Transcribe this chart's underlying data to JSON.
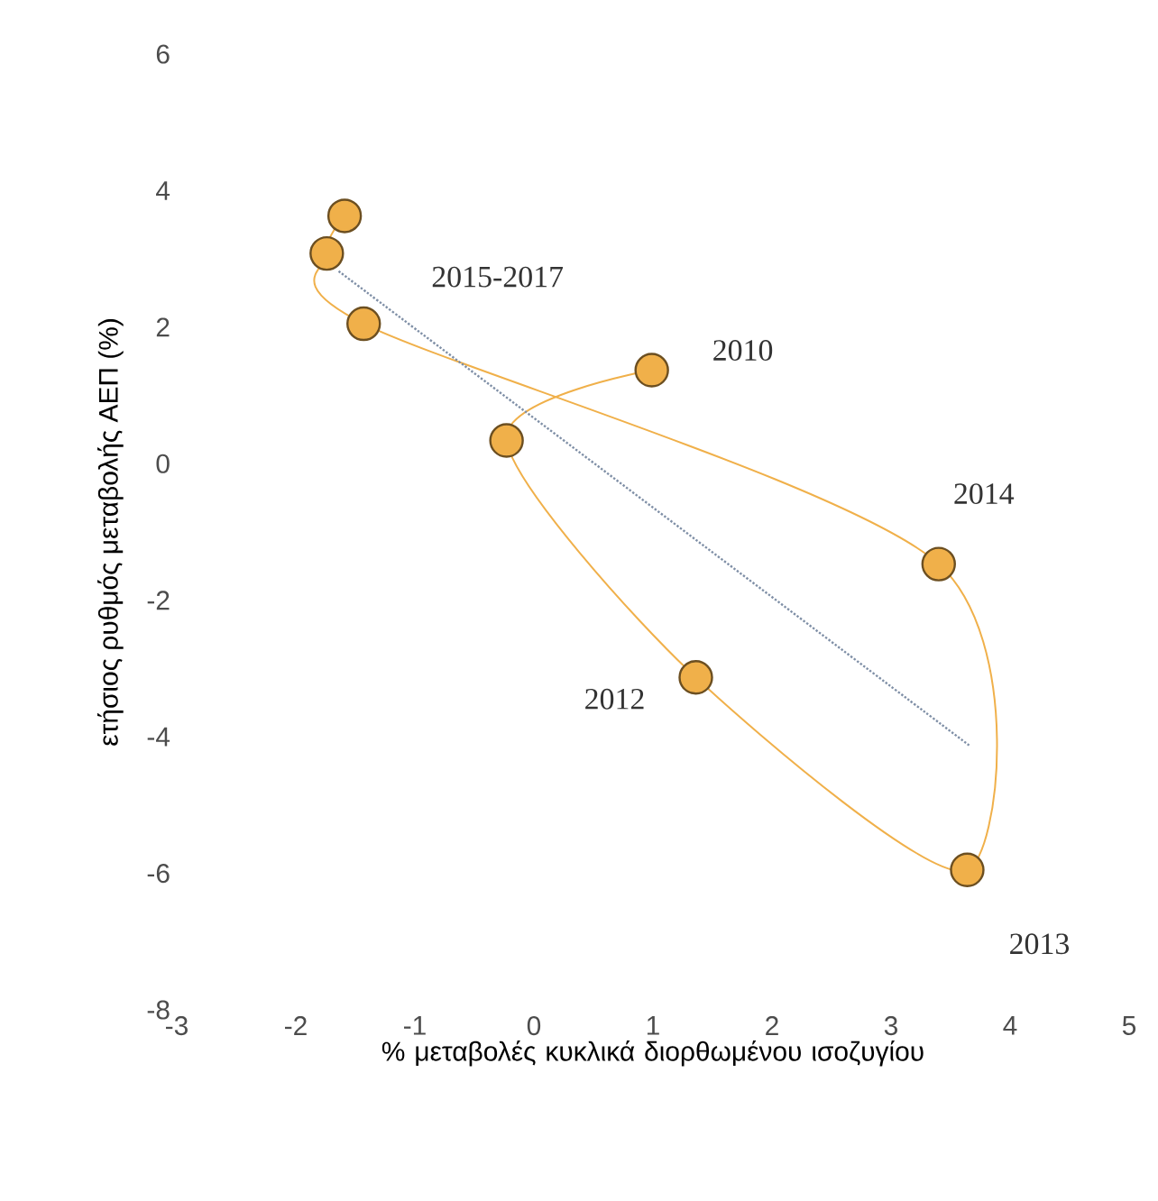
{
  "chart_data": {
    "type": "line",
    "xlabel": "% μεταβολές κυκλικά διορθωμένου ισοζυγίου",
    "ylabel": "ετήσιος ρυθμός μεταβολής ΑΕΠ (%)",
    "xlim": [
      -3,
      5
    ],
    "ylim": [
      -8,
      6
    ],
    "xticks": [
      -3,
      -2,
      -1,
      0,
      1,
      2,
      3,
      4,
      5
    ],
    "yticks": [
      -8,
      -6,
      -4,
      -2,
      0,
      2,
      4,
      6
    ],
    "series": [
      {
        "color": "#f0b04a",
        "marker": "circle",
        "line_style": "solid",
        "x": [
          0.99,
          -0.23,
          1.36,
          3.64,
          3.4,
          -1.43,
          -1.74,
          -1.59
        ],
        "values": [
          1.37,
          0.34,
          -3.13,
          -5.95,
          -1.47,
          2.05,
          3.08,
          3.63
        ]
      },
      {
        "color": "#7f8fa6",
        "marker": "none",
        "line_style": "dotted",
        "x": [
          -1.64,
          3.66
        ],
        "values": [
          2.82,
          -4.13
        ]
      }
    ],
    "annotations": [
      {
        "text": "2015-2017",
        "x": -1.43,
        "y": 2.05
      },
      {
        "text": "2010",
        "x": 0.99,
        "y": 1.37
      },
      {
        "text": "2014",
        "x": 3.4,
        "y": -1.47
      },
      {
        "text": "2012",
        "x": 1.36,
        "y": -3.13
      },
      {
        "text": "2013",
        "x": 3.64,
        "y": -5.95
      }
    ]
  }
}
